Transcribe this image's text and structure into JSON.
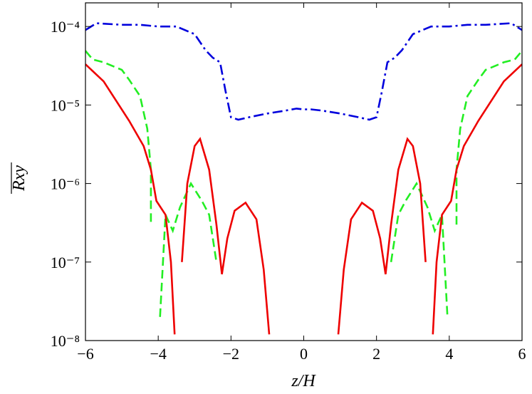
{
  "chart_data": {
    "type": "line",
    "x_label": "z/H",
    "y_label": "Rxy",
    "xlim": [
      -6,
      6
    ],
    "xticks": [
      {
        "value": -6,
        "label": "−6"
      },
      {
        "value": -4,
        "label": "−4"
      },
      {
        "value": -2,
        "label": "−2"
      },
      0,
      2,
      4,
      6
    ],
    "ylim": [
      1e-08,
      0.0002
    ],
    "log_y": true,
    "yticks": [
      {
        "value": 1e-08,
        "label": "10⁻⁸"
      },
      {
        "value": 1e-07,
        "label": "10⁻⁷"
      },
      {
        "value": 1e-06,
        "label": "10⁻⁶"
      },
      {
        "value": 1e-05,
        "label": "10⁻⁵"
      },
      {
        "value": 0.0001,
        "label": "10⁻⁴"
      }
    ],
    "series": [
      {
        "color": "#0000dd",
        "dash": "dashdot",
        "x": [
          -6,
          -5.7,
          -5,
          -4.5,
          -4,
          -3.5,
          -3,
          -2.7,
          -2.5,
          -2.3,
          -2.15,
          -2,
          -1.8,
          -1.5,
          -1,
          -0.5,
          -0.2,
          0,
          0.2,
          0.5,
          1,
          1.5,
          1.8,
          2,
          2.15,
          2.3,
          2.5,
          2.7,
          3,
          3.5,
          4,
          4.5,
          5,
          5.7,
          6
        ],
        "values": [
          9e-05,
          0.00011,
          0.000105,
          0.000105,
          0.0001,
          0.0001,
          8e-05,
          5e-05,
          4e-05,
          3.5e-05,
          1.5e-05,
          7e-06,
          6.5e-06,
          7e-06,
          7.8e-06,
          8.5e-06,
          9e-06,
          8.8e-06,
          8.8e-06,
          8.5e-06,
          7.8e-06,
          7e-06,
          6.5e-06,
          7e-06,
          1.5e-05,
          3.5e-05,
          4e-05,
          5e-05,
          8e-05,
          0.0001,
          0.0001,
          0.000105,
          0.000105,
          0.00011,
          9e-05
        ]
      },
      {
        "color": "#22ee22",
        "dash": "dashed",
        "x": [
          -6,
          -5.8,
          -5.5,
          -5,
          -4.8,
          -4.5,
          -4.3,
          -4.2,
          -4.2,
          -4.1,
          -3.95,
          -3.8,
          -3.6,
          -3.4,
          -3.1,
          -2.8,
          -2.6,
          -2.4,
          0,
          2.4,
          2.6,
          2.8,
          3.1,
          3.4,
          3.6,
          3.8,
          3.95,
          4.1,
          4.2,
          4.2,
          4.3,
          4.5,
          4.8,
          5,
          5.5,
          5.8,
          6
        ],
        "values": [
          4.9e-05,
          3.8e-05,
          3.5e-05,
          2.8e-05,
          2.1e-05,
          1.3e-05,
          5e-06,
          1.5e-06,
          3e-07,
          null,
          2e-08,
          4e-07,
          2.5e-07,
          5e-07,
          1e-06,
          6e-07,
          4e-07,
          1e-07,
          null,
          1e-07,
          4e-07,
          6e-07,
          1e-06,
          5e-07,
          2.5e-07,
          4e-07,
          2e-08,
          null,
          3e-07,
          1.5e-06,
          5e-06,
          1.3e-05,
          2.1e-05,
          2.8e-05,
          3.5e-05,
          3.8e-05,
          4.9e-05
        ]
      },
      {
        "color": "#ee0000",
        "dash": "solid",
        "x": [
          -6,
          -5.5,
          -4.8,
          -4.4,
          -4.2,
          -4.05,
          -3.8,
          -3.65,
          -3.55,
          -3.45,
          -3.35,
          -3.2,
          -3.0,
          -2.85,
          -2.6,
          -2.4,
          -2.25,
          -2.1,
          -1.9,
          -1.6,
          -1.3,
          -1.1,
          -0.95,
          0,
          0.95,
          1.1,
          1.3,
          1.6,
          1.9,
          2.1,
          2.25,
          2.4,
          2.6,
          2.85,
          3.0,
          3.2,
          3.35,
          3.45,
          3.55,
          3.65,
          3.8,
          4.05,
          4.2,
          4.4,
          4.8,
          5.5,
          6
        ],
        "values": [
          3.3e-05,
          2e-05,
          6.3e-06,
          3e-06,
          1.5e-06,
          6e-07,
          4e-07,
          1e-07,
          1.2e-08,
          null,
          1e-07,
          1e-06,
          3e-06,
          3.7e-06,
          1.5e-06,
          3e-07,
          7e-08,
          2e-07,
          4.5e-07,
          5.7e-07,
          3.5e-07,
          8e-08,
          1.2e-08,
          null,
          1.2e-08,
          8e-08,
          3.5e-07,
          5.7e-07,
          4.5e-07,
          2e-07,
          7e-08,
          3e-07,
          1.5e-06,
          3.7e-06,
          3e-06,
          1e-06,
          1e-07,
          null,
          1.2e-08,
          1e-07,
          4e-07,
          6e-07,
          1.5e-06,
          3e-06,
          6.3e-06,
          2e-05,
          3.3e-05
        ]
      }
    ]
  }
}
